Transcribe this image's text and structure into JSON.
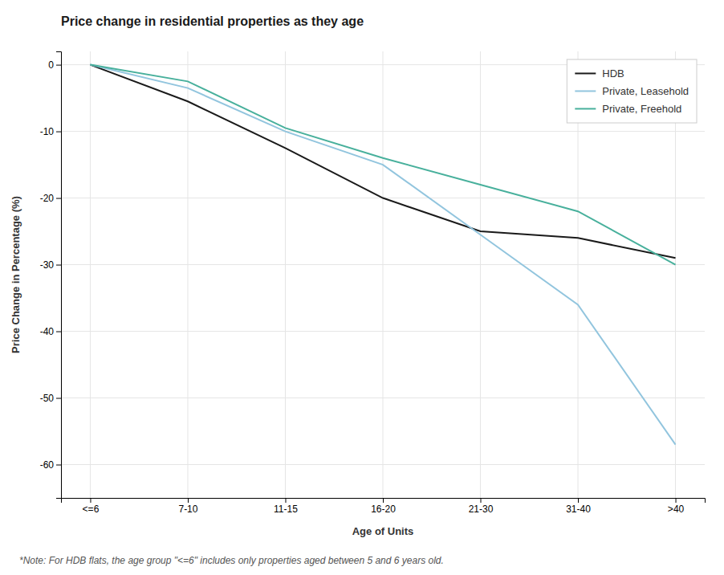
{
  "chart_data": {
    "type": "line",
    "title": "Price change in residential properties as they age",
    "x_label": "Age of Units",
    "y_label": "Price Change in Percentage (%)",
    "footnote": "*Note: For HDB flats, the age group \"<=6\" includes only properties aged between 5 and 6 years old.",
    "categories": [
      "<=6",
      "7-10",
      "11-15",
      "16-20",
      "21-30",
      "31-40",
      ">40"
    ],
    "series": [
      {
        "name": "HDB",
        "color": "#1a1a1a",
        "values": [
          0,
          -5.5,
          -12.5,
          -20,
          -25,
          -26,
          -29
        ]
      },
      {
        "name": "Private, Leasehold",
        "color": "#92C5DE",
        "values": [
          0,
          -3.5,
          -10,
          -15,
          -25.5,
          -36,
          -57
        ]
      },
      {
        "name": "Private, Freehold",
        "color": "#48B09C",
        "values": [
          0,
          -2.5,
          -9.5,
          -14,
          -18,
          -22,
          -30
        ]
      }
    ],
    "ylim": [
      -65,
      2
    ],
    "yticks": [
      0,
      -10,
      -20,
      -30,
      -40,
      -50,
      -60
    ],
    "grid": true,
    "legend": "upper right"
  }
}
